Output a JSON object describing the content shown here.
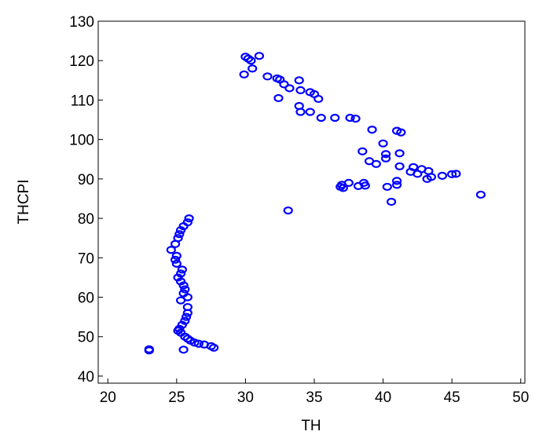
{
  "chart_data": {
    "type": "scatter",
    "x_label": "TH",
    "y_label": "THCPI",
    "color": "#0000ff",
    "xlim": [
      19.3,
      50.3
    ],
    "ylim": [
      38.2,
      130
    ],
    "xticks": [
      20,
      25,
      30,
      35,
      40,
      45,
      50
    ],
    "yticks": [
      40,
      50,
      60,
      70,
      80,
      90,
      100,
      110,
      120,
      130
    ],
    "x": [
      30.0,
      30.2,
      31.0,
      30.4,
      29.9,
      30.5,
      31.6,
      32.3,
      32.5,
      32.8,
      33.2,
      33.9,
      34.0,
      33.9,
      34.0,
      34.7,
      34.7,
      35.0,
      35.3,
      32.4,
      35.5,
      36.5,
      37.6,
      38.0,
      39.2,
      40.0,
      41.0,
      41.3,
      38.5,
      40.2,
      40.2,
      41.2,
      39.0,
      39.5,
      41.2,
      42.2,
      42.8,
      43.3,
      42.0,
      42.5,
      43.5,
      43.2,
      44.3,
      45.0,
      45.3,
      47.1,
      41.0,
      41.0,
      40.3,
      38.6,
      38.7,
      38.2,
      37.5,
      37.0,
      36.9,
      37.1,
      40.6,
      33.1,
      25.9,
      25.8,
      25.5,
      25.3,
      25.2,
      25.1,
      24.9,
      24.6,
      25.0,
      24.9,
      25.0,
      25.4,
      25.3,
      25.1,
      25.3,
      25.5,
      25.6,
      25.5,
      25.8,
      25.3,
      25.8,
      25.8,
      25.7,
      25.6,
      25.4,
      25.2,
      25.1,
      25.3,
      25.6,
      25.8,
      26.0,
      26.3,
      26.6,
      27.0,
      27.5,
      27.7,
      25.5,
      23.0,
      23.0
    ],
    "values": [
      121,
      120.5,
      121.2,
      120,
      116.5,
      118,
      116,
      115.5,
      115.2,
      114,
      113,
      115,
      112.5,
      108.5,
      107,
      107,
      112,
      111.5,
      110.3,
      110.5,
      105.5,
      105.5,
      105.5,
      105.3,
      102.5,
      99,
      102.2,
      101.8,
      97,
      96.3,
      95.2,
      96.5,
      94.5,
      93.8,
      93.2,
      93,
      92.5,
      92,
      91.8,
      91.3,
      90.5,
      90,
      90.8,
      91.2,
      91.3,
      86,
      89.5,
      88.5,
      88,
      89,
      88.3,
      88.2,
      89,
      88.5,
      88,
      87.7,
      84.2,
      82,
      80,
      79,
      78,
      77,
      76,
      75,
      73.5,
      72,
      70.5,
      69.5,
      68.5,
      67,
      66,
      65,
      64,
      63,
      62,
      61,
      60,
      59.2,
      57.5,
      56,
      55,
      54,
      53,
      52,
      51.5,
      51,
      50,
      49.5,
      49,
      48.5,
      48.2,
      48,
      47.6,
      47.2,
      46.7,
      46.8,
      46.5
    ]
  }
}
